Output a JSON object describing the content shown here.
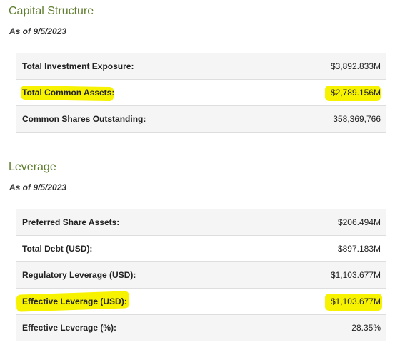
{
  "capital": {
    "title": "Capital Structure",
    "as_of": "As of 9/5/2023",
    "rows": [
      {
        "label": "Total Investment Exposure:",
        "value": "$3,892.833M"
      },
      {
        "label": "Total Common Assets:",
        "value": "$2,789.156M"
      },
      {
        "label": "Common Shares Outstanding:",
        "value": "358,369,766"
      }
    ]
  },
  "leverage": {
    "title": "Leverage",
    "as_of": "As of 9/5/2023",
    "rows": [
      {
        "label": "Preferred Share Assets:",
        "value": "$206.494M"
      },
      {
        "label": "Total Debt (USD):",
        "value": "$897.183M"
      },
      {
        "label": "Regulatory Leverage (USD):",
        "value": "$1,103.677M"
      },
      {
        "label": "Effective Leverage (USD):",
        "value": "$1,103.677M"
      },
      {
        "label": "Effective Leverage (%):",
        "value": "28.35%"
      }
    ]
  },
  "colors": {
    "title_green": "#5f7d2f",
    "highlight": "#f6f200"
  }
}
